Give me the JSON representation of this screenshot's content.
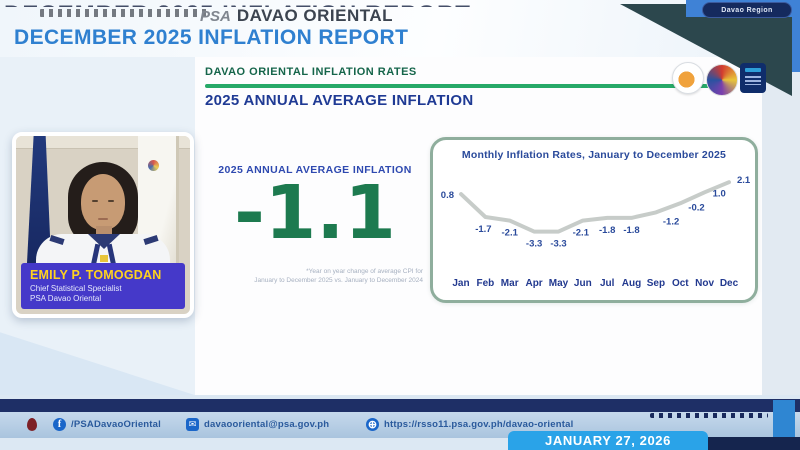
{
  "header": {
    "clipped_top_text": "DECEMBER 2025 INFLATION REPORT",
    "psa_script": "PSA",
    "org_name": "DAVAO ORIENTAL",
    "title": "DECEMBER 2025 INFLATION REPORT",
    "region_badge": "Davao Region"
  },
  "section": {
    "kicker": "DAVAO ORIENTAL INFLATION RATES",
    "heading": "2025 ANNUAL AVERAGE INFLATION"
  },
  "speaker": {
    "name": "EMILY P. TOMOGDAN",
    "role": "Chief Statistical Specialist",
    "office": "PSA Davao Oriental"
  },
  "annual": {
    "label": "2025 ANNUAL AVERAGE INFLATION",
    "value": "-1.1",
    "footnote1": "*Year on year change of average CPI for",
    "footnote2": "January to December 2025 vs. January to December 2024"
  },
  "chart_data": {
    "type": "line",
    "title": "Monthly Inflation Rates, January to December 2025",
    "categories": [
      "Jan",
      "Feb",
      "Mar",
      "Apr",
      "May",
      "Jun",
      "Jul",
      "Aug",
      "Sep",
      "Oct",
      "Nov",
      "Dec"
    ],
    "values": [
      0.8,
      -1.7,
      -2.1,
      -3.3,
      -3.3,
      -2.1,
      -1.8,
      -1.8,
      -1.2,
      -0.2,
      1.0,
      2.1
    ],
    "labels": [
      "0.8",
      "-1.7",
      "-2.1",
      "-3.3",
      "-3.3",
      "-2.1",
      "-1.8",
      "-1.8",
      "-1.2",
      "-0.2",
      "1.0",
      "2.1"
    ],
    "xlabel": "",
    "ylabel": "",
    "ylim": [
      -4,
      3
    ],
    "grid": false,
    "legend": "none",
    "line_color": "#c7ccc9",
    "label_color": "#2a4a9b",
    "axis_label_color": "#22398f"
  },
  "footer": {
    "facebook": "/PSADavaoOriental",
    "email": "davaooriental@psa.gov.ph",
    "website": "https://rsso11.psa.gov.ph/davao-oriental",
    "date": "JANUARY 27, 2026"
  },
  "colors": {
    "annual_green": "#1d7a4f",
    "title_blue": "#2f80d0",
    "heading_navy": "#1f3a94",
    "kicker_green": "#15654a",
    "underline_green": "#27a968",
    "plate_blue": "#4539c9",
    "name_yellow": "#ffd21e",
    "date_banner_blue": "#2aa3e8"
  }
}
